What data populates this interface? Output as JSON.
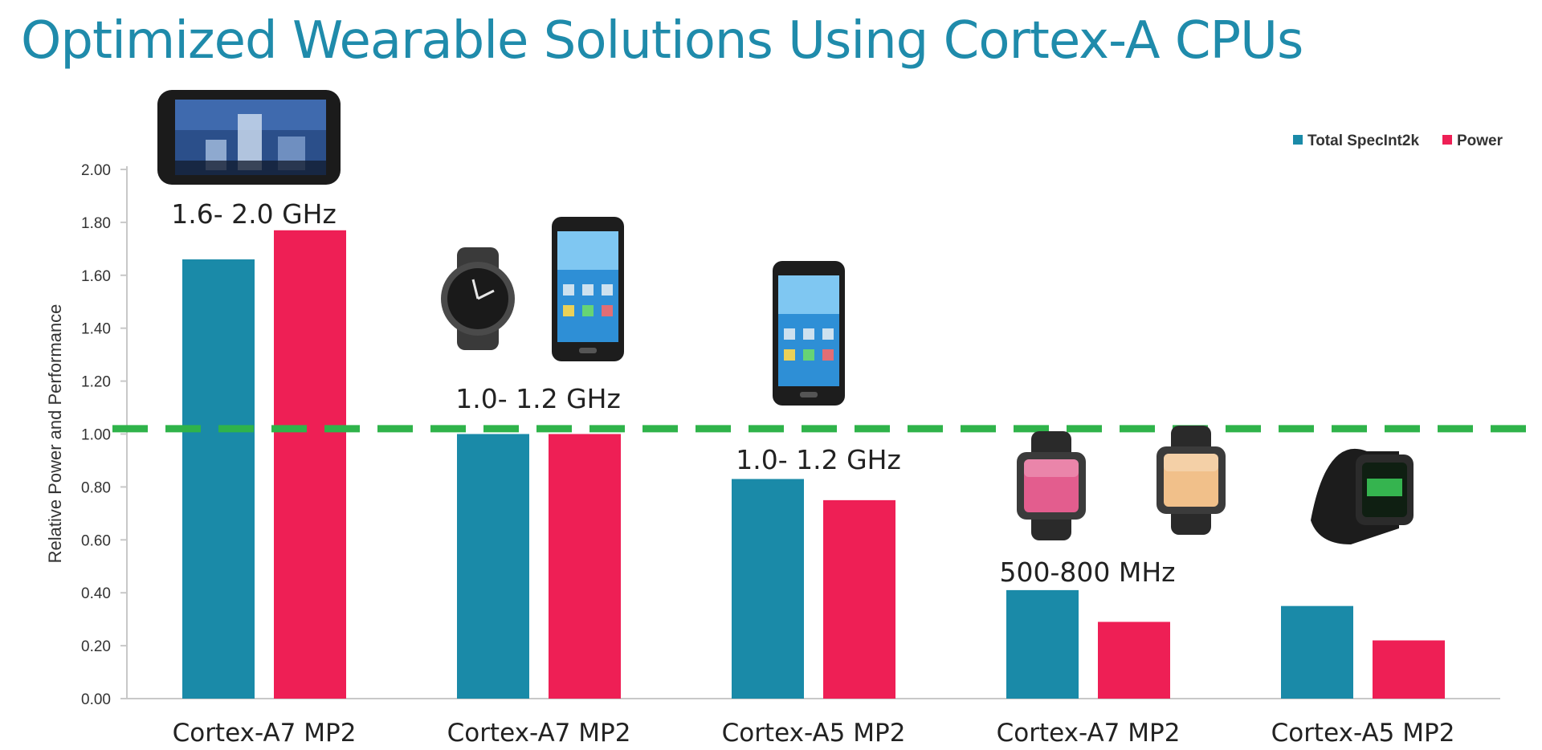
{
  "slide": {
    "title": "Optimized Wearable Solutions Using Cortex-A CPUs"
  },
  "colors": {
    "title": "#1f8bab",
    "series_specint": "#1a8aa8",
    "series_power": "#ee1f55",
    "reference_line": "#2fb34a",
    "axis": "#c8c8c8"
  },
  "chart_data": {
    "type": "bar",
    "title": "",
    "xlabel": "",
    "ylabel": "Relative Power and Performance",
    "ylim": [
      0,
      2.0
    ],
    "yticks": [
      "0.00",
      "0.20",
      "0.40",
      "0.60",
      "0.80",
      "1.00",
      "1.20",
      "1.40",
      "1.60",
      "1.80",
      "2.00"
    ],
    "categories": [
      "Cortex-A7 MP2",
      "Cortex-A7 MP2",
      "Cortex-A5 MP2",
      "Cortex-A7 MP2",
      "Cortex-A5 MP2"
    ],
    "series": [
      {
        "name": "Total SpecInt2k",
        "values": [
          1.66,
          1.0,
          0.83,
          0.41,
          0.35
        ]
      },
      {
        "name": "Power",
        "values": [
          1.77,
          1.0,
          0.75,
          0.29,
          0.22
        ]
      }
    ],
    "reference_line": {
      "value": 1.02,
      "style": "dashed"
    },
    "legend_position": "top-right",
    "grid": false,
    "annotations": [
      {
        "text": "1.6- 2.0 GHz",
        "category_index": 0
      },
      {
        "text": "1.0- 1.2 GHz",
        "category_index": 1
      },
      {
        "text": "1.0- 1.2 GHz",
        "category_index": 2
      },
      {
        "text": "500-800 MHz",
        "category_index": 3
      }
    ],
    "device_images": [
      {
        "icon": "tablet-icon",
        "category_index": 0
      },
      {
        "icon": "round-smartwatch-icon",
        "category_index": 1
      },
      {
        "icon": "smartphone-icon",
        "category_index": 1
      },
      {
        "icon": "smartphone-icon",
        "category_index": 2
      },
      {
        "icon": "square-smartwatch-icon",
        "category_index": 3
      },
      {
        "icon": "square-smartwatch-icon",
        "category_index": 3
      },
      {
        "icon": "sport-smartwatch-icon",
        "category_index": 4
      }
    ]
  }
}
